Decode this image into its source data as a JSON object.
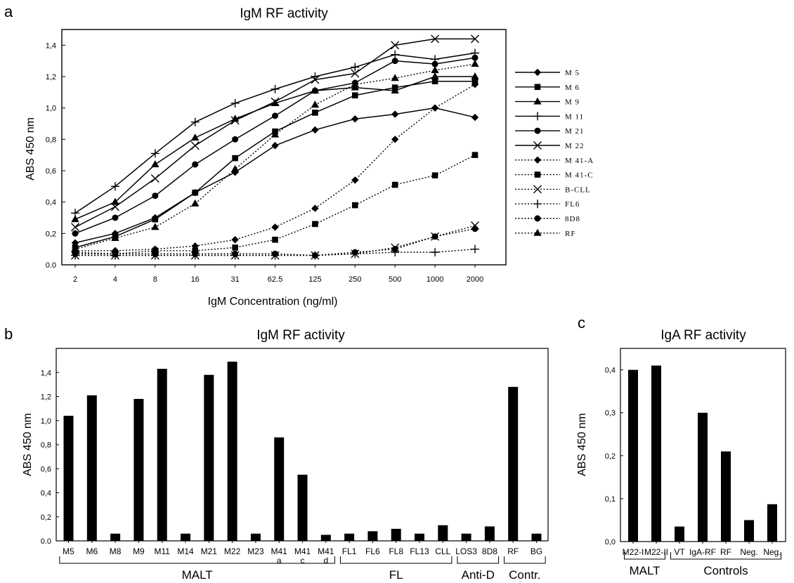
{
  "chart_data": [
    {
      "panel": "a",
      "type": "line",
      "title": "IgM RF activity",
      "xlabel": "IgM Concentration (ng/ml)",
      "ylabel": "ABS 450 nm",
      "categories": [
        "2",
        "4",
        "8",
        "16",
        "31",
        "62.5",
        "125",
        "250",
        "500",
        "1000",
        "2000"
      ],
      "ylim": [
        0,
        1.5
      ],
      "yticks": [
        "0.0",
        "0,2",
        "0,4",
        "0,6",
        "0,8",
        "1,0",
        "1,2",
        "1,4"
      ],
      "legend": "right",
      "series": [
        {
          "name": "M 5",
          "marker": "diamond",
          "dash": "solid",
          "values": [
            0.14,
            0.2,
            0.3,
            0.46,
            0.59,
            0.76,
            0.86,
            0.93,
            0.96,
            1.0,
            0.94
          ]
        },
        {
          "name": "M 6",
          "marker": "square",
          "dash": "solid",
          "values": [
            0.11,
            0.18,
            0.29,
            0.46,
            0.68,
            0.85,
            0.97,
            1.08,
            1.13,
            1.17,
            1.17
          ]
        },
        {
          "name": "M 9",
          "marker": "triangle",
          "dash": "solid",
          "values": [
            0.29,
            0.4,
            0.64,
            0.81,
            0.93,
            1.03,
            1.11,
            1.13,
            1.11,
            1.2,
            1.2
          ]
        },
        {
          "name": "M 11",
          "marker": "plus",
          "dash": "solid",
          "values": [
            0.33,
            0.5,
            0.71,
            0.91,
            1.03,
            1.12,
            1.2,
            1.26,
            1.34,
            1.31,
            1.35
          ]
        },
        {
          "name": "M 21",
          "marker": "circle",
          "dash": "solid",
          "values": [
            0.2,
            0.3,
            0.44,
            0.64,
            0.8,
            0.95,
            1.11,
            1.16,
            1.3,
            1.28,
            1.32
          ]
        },
        {
          "name": "M 22",
          "marker": "x",
          "dash": "solid",
          "values": [
            0.24,
            0.37,
            0.55,
            0.76,
            0.92,
            1.04,
            1.18,
            1.22,
            1.4,
            1.44,
            1.44
          ]
        },
        {
          "name": "M 41-A",
          "marker": "diamond",
          "dash": "dotted",
          "values": [
            0.09,
            0.09,
            0.1,
            0.12,
            0.16,
            0.24,
            0.36,
            0.54,
            0.8,
            1.0,
            1.15
          ]
        },
        {
          "name": "M 41-C",
          "marker": "square",
          "dash": "dotted",
          "values": [
            0.08,
            0.07,
            0.09,
            0.09,
            0.11,
            0.16,
            0.26,
            0.38,
            0.51,
            0.57,
            0.7
          ]
        },
        {
          "name": "B-CLL",
          "marker": "x",
          "dash": "dotted",
          "values": [
            0.06,
            0.06,
            0.06,
            0.06,
            0.06,
            0.06,
            0.06,
            0.07,
            0.11,
            0.18,
            0.25
          ]
        },
        {
          "name": "FL6",
          "marker": "plus",
          "dash": "dotted",
          "values": [
            0.06,
            0.06,
            0.06,
            0.06,
            0.06,
            0.06,
            0.06,
            0.07,
            0.08,
            0.08,
            0.1
          ]
        },
        {
          "name": "8D8",
          "marker": "circle",
          "dash": "dotted",
          "values": [
            0.07,
            0.07,
            0.07,
            0.07,
            0.07,
            0.07,
            0.06,
            0.08,
            0.1,
            0.18,
            0.23
          ]
        },
        {
          "name": "RF",
          "marker": "triangle",
          "dash": "dotted",
          "values": [
            0.1,
            0.17,
            0.24,
            0.39,
            0.61,
            0.83,
            1.02,
            1.15,
            1.19,
            1.24,
            1.28
          ]
        }
      ]
    },
    {
      "panel": "b",
      "type": "bar",
      "title": "IgM RF activity",
      "ylabel": "ABS 450 nm",
      "xlabel": "",
      "ylim": [
        0,
        1.6
      ],
      "yticks": [
        "0.0",
        "0,2",
        "0,4",
        "0,6",
        "0,8",
        "1,0",
        "1,2",
        "1,4"
      ],
      "categories": [
        "M5",
        "M6",
        "M8",
        "M9",
        "M11",
        "M14",
        "M21",
        "M22",
        "M23",
        "M41",
        "M41",
        "M41",
        "FL1",
        "FL6",
        "FL8",
        "FL13",
        "CLL",
        "LOS3",
        "8D8",
        "RF",
        "BG"
      ],
      "sublabels": [
        "",
        "",
        "",
        "",
        "",
        "",
        "",
        "",
        "",
        "a",
        "c",
        "d",
        "",
        "",
        "",
        "",
        "",
        "",
        "",
        "",
        ""
      ],
      "values": [
        1.04,
        1.21,
        0.06,
        1.18,
        1.43,
        0.06,
        1.38,
        1.49,
        0.06,
        0.86,
        0.55,
        0.05,
        0.06,
        0.08,
        0.1,
        0.06,
        0.13,
        0.06,
        0.12,
        1.28,
        0.06
      ],
      "groups": [
        {
          "label": "MALT",
          "from": 0,
          "to": 11
        },
        {
          "label": "FL",
          "from": 12,
          "to": 16
        },
        {
          "label": "Anti-D",
          "from": 17,
          "to": 18
        },
        {
          "label": "Contr.",
          "from": 19,
          "to": 20
        }
      ]
    },
    {
      "panel": "c",
      "type": "bar",
      "title": "IgA RF activity",
      "ylabel": "ABS 450 nm",
      "xlabel": "",
      "ylim": [
        0,
        0.45
      ],
      "yticks": [
        "0,0",
        "0,1",
        "0,2",
        "0,3",
        "0,4"
      ],
      "categories": [
        "M22-I",
        "M22-II",
        "VT",
        "IgA-RF",
        "RF",
        "Neg.",
        "Neg."
      ],
      "values": [
        0.4,
        0.41,
        0.035,
        0.3,
        0.21,
        0.05,
        0.087
      ],
      "groups": [
        {
          "label": "MALT",
          "from": 0,
          "to": 1
        },
        {
          "label": "Controls",
          "from": 2,
          "to": 6
        }
      ]
    }
  ]
}
